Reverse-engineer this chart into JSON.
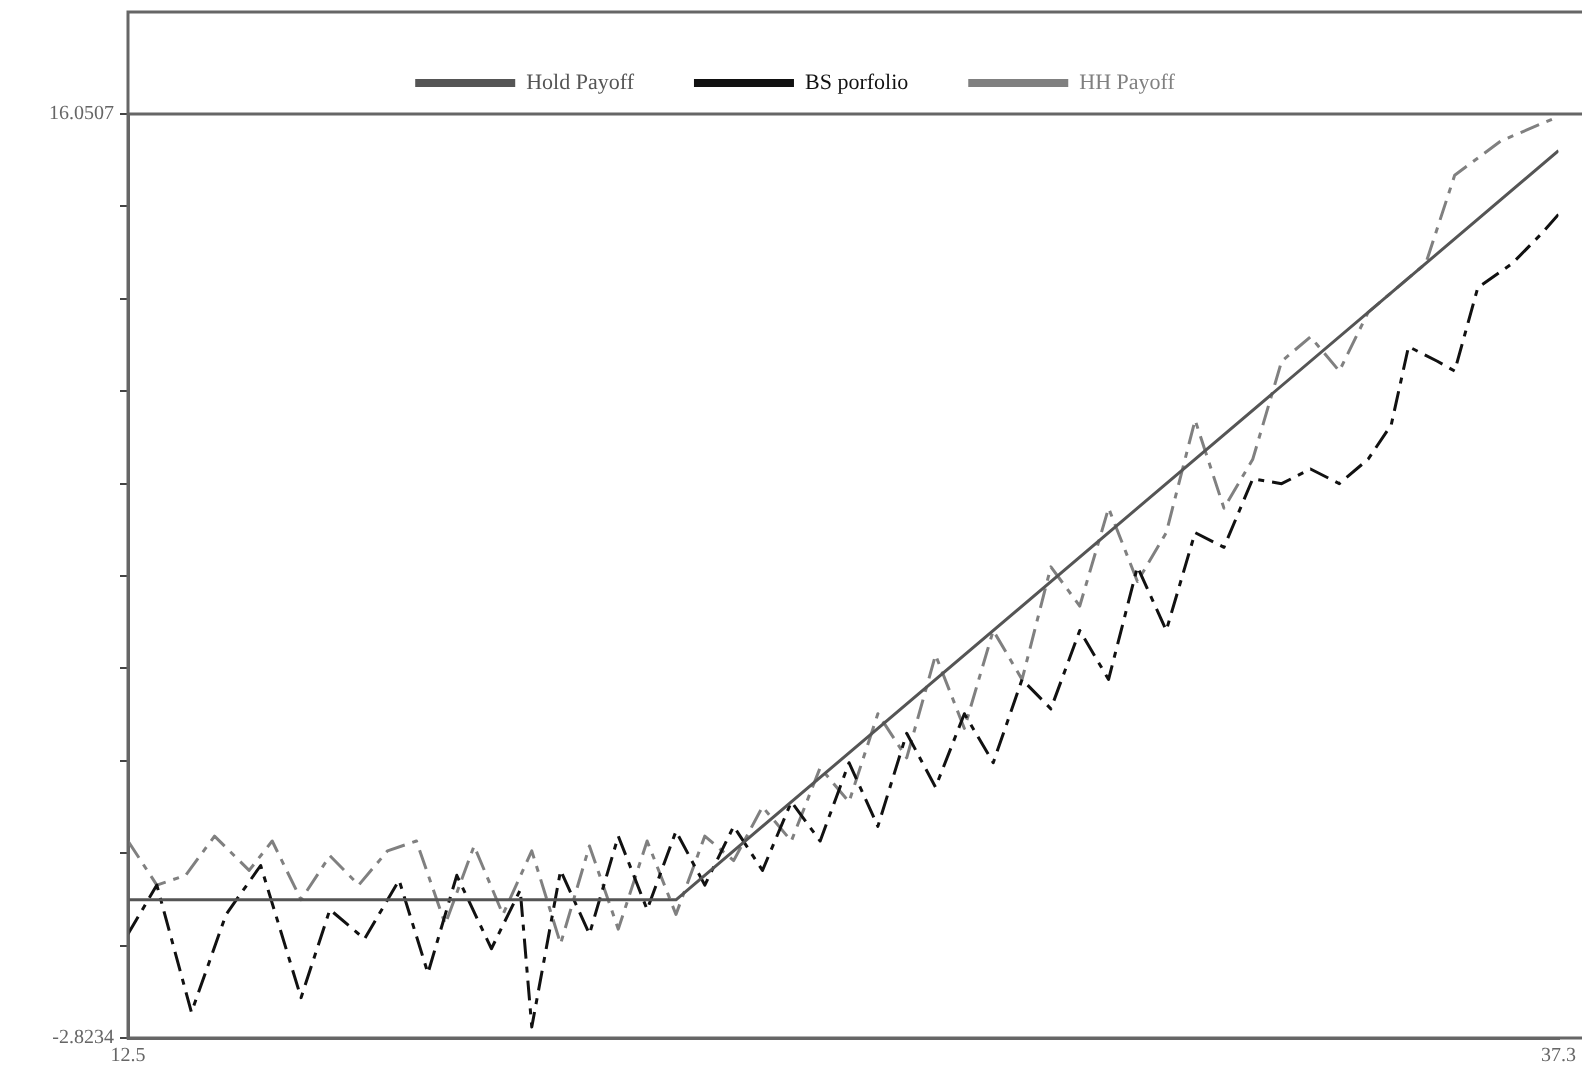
{
  "chart_data": {
    "type": "line",
    "xlim": [
      12.5,
      37.3
    ],
    "xticks": [
      12.5,
      37.3
    ],
    "ylim": [
      -2.8234,
      16.0507
    ],
    "yticks": [
      -2.8234,
      {
        "value": -0.936,
        "label": null
      },
      {
        "value": 0.9514,
        "label": null
      },
      {
        "value": 2.8388,
        "label": null
      },
      {
        "value": 4.7262,
        "label": null
      },
      {
        "value": 6.6137,
        "label": null
      },
      {
        "value": 8.5011,
        "label": null
      },
      {
        "value": 10.3885,
        "label": null
      },
      {
        "value": 12.2759,
        "label": null
      },
      {
        "value": 14.1633,
        "label": null
      },
      16.0507
    ],
    "grid": false,
    "legend": "top",
    "marker": "none",
    "series": [
      {
        "name": "Hold Payoff",
        "color": "#555555",
        "line_style": "solid",
        "x": [
          12.5,
          22.0,
          37.3
        ],
        "values": [
          0.0,
          0.0,
          15.3
        ]
      },
      {
        "name": "BS porfolio",
        "color": "#111111",
        "line_style": "dashed",
        "x": [
          12.5,
          13.0,
          13.6,
          14.2,
          14.8,
          15.5,
          16.0,
          16.6,
          17.2,
          17.7,
          18.2,
          18.8,
          19.3,
          19.5,
          20.0,
          20.5,
          21.0,
          21.5,
          22.0,
          22.5,
          23.0,
          23.5,
          24.0,
          24.5,
          25.0,
          25.5,
          26.0,
          26.5,
          27.0,
          27.5,
          28.0,
          28.5,
          29.0,
          29.5,
          30.0,
          30.5,
          31.0,
          31.5,
          32.0,
          32.5,
          33.0,
          33.5,
          34.0,
          34.4,
          34.7,
          35.2,
          35.5,
          35.9,
          36.5,
          37.0,
          37.3
        ],
        "values": [
          -0.7,
          0.3,
          -2.3,
          -0.3,
          0.7,
          -2.0,
          -0.2,
          -0.8,
          0.4,
          -1.5,
          0.5,
          -1.0,
          0.2,
          -2.6,
          0.6,
          -0.7,
          1.3,
          -0.2,
          1.4,
          0.3,
          1.5,
          0.6,
          2.0,
          1.2,
          2.8,
          1.5,
          3.4,
          2.3,
          3.8,
          2.8,
          4.5,
          3.9,
          5.5,
          4.5,
          6.8,
          5.5,
          7.5,
          7.2,
          8.6,
          8.5,
          8.8,
          8.5,
          9.0,
          9.7,
          11.3,
          11.0,
          10.8,
          12.5,
          13.0,
          13.6,
          14.0
        ]
      },
      {
        "name": "HH Payoff",
        "color": "#808080",
        "line_style": "dashed",
        "x": [
          12.5,
          13.0,
          13.5,
          14.0,
          14.6,
          15.0,
          15.5,
          16.0,
          16.5,
          17.0,
          17.5,
          18.0,
          18.5,
          19.0,
          19.5,
          20.0,
          20.5,
          21.0,
          21.5,
          22.0,
          22.5,
          23.0,
          23.5,
          24.0,
          24.5,
          25.0,
          25.5,
          26.0,
          26.5,
          27.0,
          27.5,
          28.0,
          28.5,
          29.0,
          29.5,
          30.0,
          30.5,
          31.0,
          31.5,
          32.0,
          32.5,
          33.0,
          33.5,
          34.0,
          35.0,
          35.5,
          36.3,
          37.3
        ],
        "values": [
          1.2,
          0.3,
          0.5,
          1.3,
          0.6,
          1.2,
          0.0,
          0.9,
          0.3,
          1.0,
          1.2,
          -0.5,
          1.1,
          -0.3,
          1.0,
          -0.9,
          1.1,
          -0.6,
          1.2,
          -0.3,
          1.3,
          0.8,
          1.9,
          1.2,
          2.7,
          2.0,
          3.8,
          2.9,
          5.0,
          3.5,
          5.5,
          4.5,
          6.8,
          6.0,
          8.0,
          6.5,
          7.5,
          9.8,
          8.0,
          9.0,
          11.0,
          11.5,
          10.8,
          12.0,
          13.0,
          14.8,
          15.5,
          16.0
        ]
      }
    ]
  }
}
